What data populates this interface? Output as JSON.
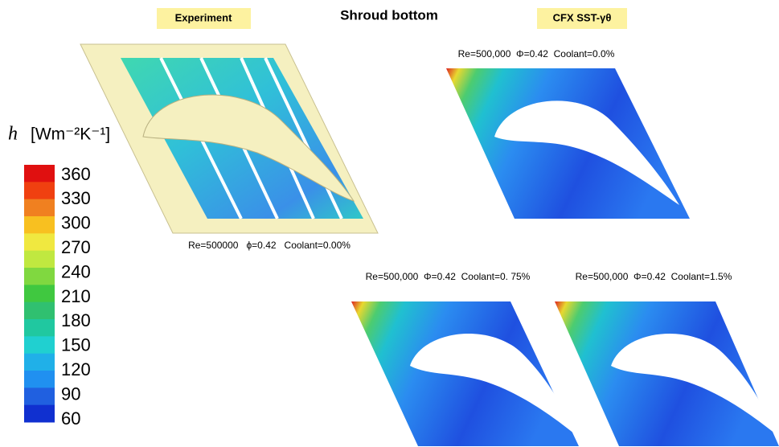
{
  "header": {
    "title": "Shroud bottom",
    "experiment_label": "Experiment",
    "cfd_label": "CFX SST-γθ"
  },
  "colorbar": {
    "symbol": "h",
    "unit": "[Wm⁻²K⁻¹]",
    "ticks": [
      360,
      330,
      300,
      270,
      240,
      210,
      180,
      150,
      120,
      90,
      60
    ]
  },
  "panels": [
    {
      "caption": "Re=500000   ϕ=0.42   Coolant=0.00%"
    },
    {
      "caption": "Re=500,000  Φ=0.42  Coolant=0.0%"
    },
    {
      "caption": "Re=500,000  Φ=0.42  Coolant=0. 75%"
    },
    {
      "caption": "Re=500,000  Φ=0.42  Coolant=1.5%"
    }
  ]
}
